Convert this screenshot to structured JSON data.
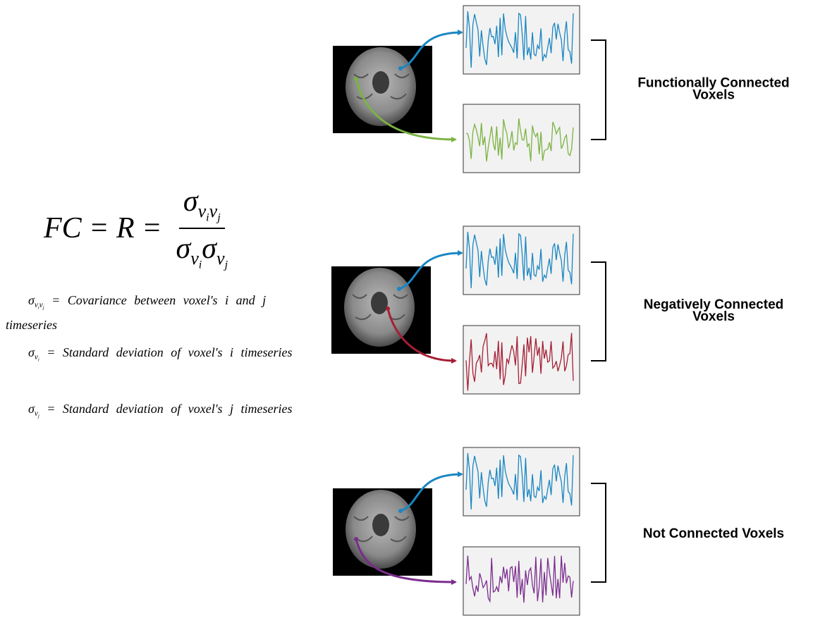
{
  "formula": {
    "lhs": "FC = R =",
    "numerator": [
      "σ",
      "v",
      "i",
      "v",
      "j"
    ],
    "denominator": [
      "σ",
      "v",
      "i",
      "σ",
      "v",
      "j"
    ]
  },
  "definitions": [
    {
      "symbol": [
        "σ",
        "v",
        "i",
        "v",
        "j"
      ],
      "text": "= Covariance between voxel's i and j timeseries"
    },
    {
      "symbol": [
        "σ",
        "v",
        "i"
      ],
      "text": "= Standard deviation of voxel's i timeseries"
    },
    {
      "symbol": [
        "σ",
        "v",
        "j"
      ],
      "text": "= Standard deviation of voxel's j timeseries"
    }
  ],
  "panels": [
    {
      "label": "Functionally Connected Voxels"
    },
    {
      "label": "Negatively Connected Voxels"
    },
    {
      "label": "Not Connected Voxels"
    }
  ]
}
